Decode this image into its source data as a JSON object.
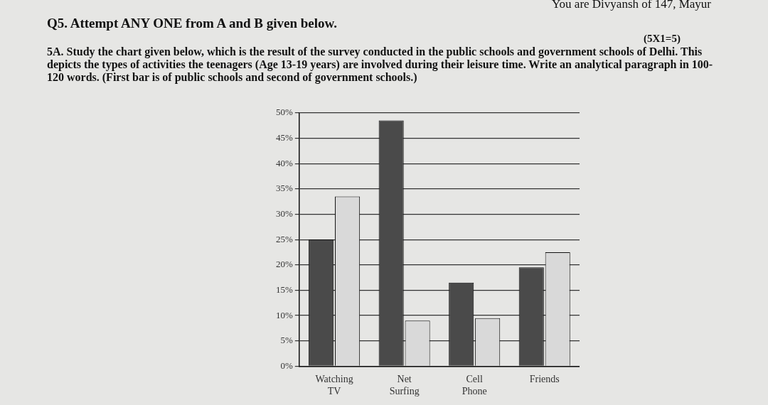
{
  "chart_data": {
    "type": "bar",
    "title": "Q5. Attempt ANY ONE from A and B given below.",
    "subtitle": "5A. Study the chart given below, which is the result of the survey conducted in the public schools and government schools of Delhi. This depicts the types of activities the teenagers (Age 13-19 years) are involved during their leisure time. Write an analytical paragraph in 100-120 words. (First bar is of public schools and second of government schools.)",
    "annotations": [
      "You are Divyansh of 147, Mayur",
      "(5X1=5)"
    ],
    "categories": [
      "Watching TV",
      "Net Surfing",
      "Cell Phone",
      "Friends"
    ],
    "series": [
      {
        "color": "#4a4a4a",
        "values": [
          25,
          48.5,
          16.5,
          19.5
        ]
      },
      {
        "color": "#d9d9d9",
        "values": [
          33.5,
          9,
          9.5,
          22.5
        ]
      }
    ],
    "ylim": [
      0,
      50
    ],
    "yticks": [
      {
        "value": 0,
        "label": "0%"
      },
      {
        "value": 5,
        "label": "5%"
      },
      {
        "value": 10,
        "label": "10%"
      },
      {
        "value": 15,
        "label": "15%"
      },
      {
        "value": 20,
        "label": "20%"
      },
      {
        "value": 25,
        "label": "25%"
      },
      {
        "value": 30,
        "label": "30%"
      },
      {
        "value": 35,
        "label": "35%"
      },
      {
        "value": 40,
        "label": "40%"
      },
      {
        "value": 45,
        "label": "45%"
      },
      {
        "value": 50,
        "label": "50%"
      }
    ],
    "grid": "y",
    "legend": false
  }
}
